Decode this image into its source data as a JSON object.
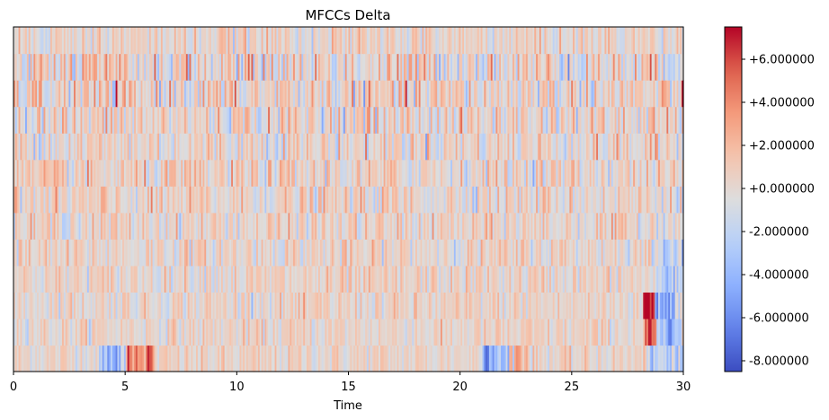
{
  "chart_data": {
    "type": "heatmap",
    "title": "MFCCs Delta",
    "xlabel": "Time",
    "ylabel": "",
    "xlim": [
      0,
      30
    ],
    "x_ticks": [
      0,
      5,
      10,
      15,
      20,
      25,
      30
    ],
    "x_tick_labels": [
      "0",
      "5",
      "10",
      "15",
      "20",
      "25",
      "30"
    ],
    "n_coefficients": 13,
    "n_frames": 400,
    "colormap": "coolwarm",
    "colorbar": {
      "vmin": -8.5,
      "vmax": 7.5,
      "ticks": [
        6,
        4,
        2,
        0,
        -2,
        -4,
        -6,
        -8
      ],
      "tick_labels": [
        "+6.000000",
        "+4.000000",
        "+2.000000",
        "+0.000000",
        "-2.000000",
        "-4.000000",
        "-6.000000",
        "-8.000000"
      ]
    },
    "row_spread": [
      1.1,
      1.15,
      1.25,
      1.3,
      1.4,
      1.5,
      1.6,
      1.7,
      1.8,
      2.0,
      2.2,
      2.4,
      1.4
    ],
    "highlights": [
      {
        "row": 0,
        "t0": 3.8,
        "t1": 5.0,
        "mean": -3.2
      },
      {
        "row": 0,
        "t0": 5.0,
        "t1": 6.3,
        "mean": 4.5
      },
      {
        "row": 0,
        "t0": 21.0,
        "t1": 22.2,
        "mean": -4.0
      },
      {
        "row": 0,
        "t0": 22.2,
        "t1": 23.0,
        "mean": 2.5
      },
      {
        "row": 0,
        "t0": 28.5,
        "t1": 30.0,
        "mean": -2.5
      },
      {
        "row": 1,
        "t0": 28.3,
        "t1": 28.8,
        "mean": 5.5
      },
      {
        "row": 1,
        "t0": 28.8,
        "t1": 30.0,
        "mean": -3.0
      },
      {
        "row": 2,
        "t0": 28.2,
        "t1": 28.7,
        "mean": 7.0
      },
      {
        "row": 2,
        "t0": 28.7,
        "t1": 29.6,
        "mean": -4.5
      },
      {
        "row": 3,
        "t0": 28.5,
        "t1": 30.0,
        "mean": -2.5
      },
      {
        "row": 4,
        "t0": 28.5,
        "t1": 30.0,
        "mean": -2.0
      }
    ],
    "grid": false,
    "legend": "none"
  }
}
